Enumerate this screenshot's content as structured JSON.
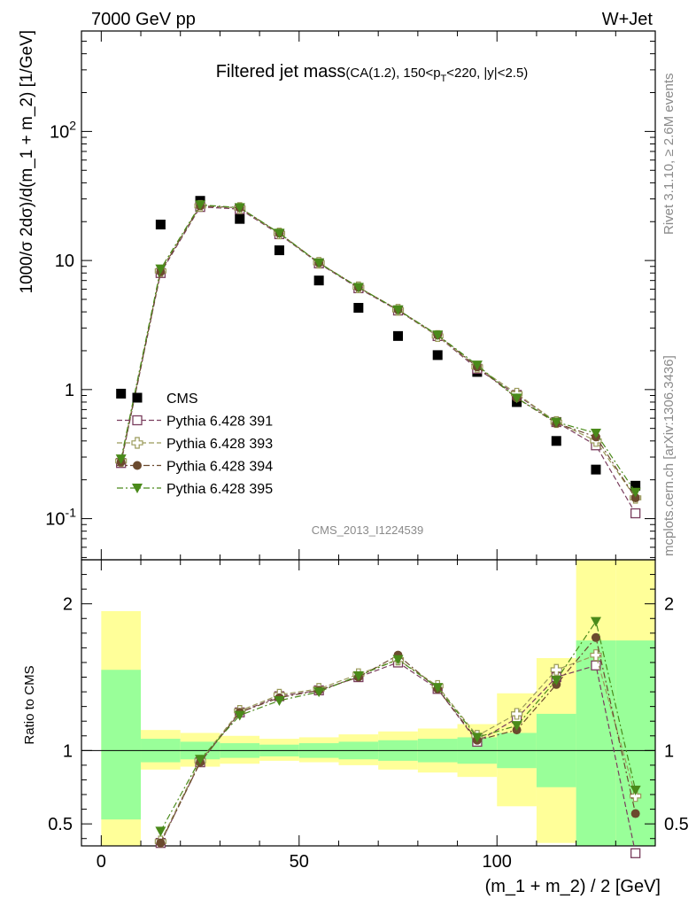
{
  "header": {
    "left": "7000 GeV pp",
    "right": "W+Jet",
    "title_main": "Filtered jet mass",
    "title_sub_pre": "(CA(1.2), 150<p",
    "title_sub_subscript": "T",
    "title_sub_post": "<220, |y|<2.5)",
    "analysis_id": "CMS_2013_I1224539",
    "side_rivet": "Rivet 3.1.10, ≥ 2.6M events",
    "side_mcplots": "mcplots.cern.ch [arXiv:1306.3436]"
  },
  "colors": {
    "data": "#000000",
    "p391": "#7a3e5e",
    "p393": "#9a9a5a",
    "p394": "#6b4a2e",
    "p395": "#4a8a1a",
    "band_inner": "#99ff99",
    "band_outer": "#ffff99"
  },
  "chart_data": [
    {
      "panel": "main",
      "type": "scatter",
      "xlabel": "(m_1 + m_2) / 2 [GeV]",
      "ylabel": "1000/σ 2dσ)/d(m_1 + m_2) [1/GeV]",
      "yscale": "log",
      "xlim": [
        -5,
        140
      ],
      "ylim": [
        0.048,
        600
      ],
      "yticks": [
        {
          "value": 1,
          "label": "1"
        },
        {
          "value": 10,
          "label": "10"
        },
        {
          "value": 100,
          "label": "10",
          "sup": "2"
        }
      ],
      "extra_tick_label": {
        "value": 0.1,
        "label": "10",
        "sup": "-1"
      },
      "x": [
        5,
        15,
        25,
        35,
        45,
        55,
        65,
        75,
        85,
        95,
        105,
        115,
        125,
        135
      ],
      "series": [
        {
          "name": "CMS",
          "key": "data",
          "marker": "square-filled",
          "values": [
            0.93,
            19,
            29,
            21,
            12,
            7,
            4.3,
            2.6,
            1.85,
            1.37,
            0.8,
            0.4,
            0.24,
            0.18
          ]
        },
        {
          "name": "Pythia 6.428 391",
          "key": "p391",
          "marker": "square-open",
          "line": "dash",
          "values": [
            0.27,
            8,
            26,
            25,
            16,
            9.5,
            6.1,
            4.1,
            2.6,
            1.45,
            0.91,
            0.56,
            0.37,
            0.11
          ]
        },
        {
          "name": "Pythia 6.428 393",
          "key": "p393",
          "marker": "plus-open",
          "line": "dash",
          "values": [
            0.28,
            8.3,
            26.5,
            25.5,
            16.2,
            9.6,
            6.2,
            4.15,
            2.6,
            1.5,
            0.93,
            0.56,
            0.4,
            0.145
          ]
        },
        {
          "name": "Pythia 6.428 394",
          "key": "p394",
          "marker": "circle-filled",
          "line": "dashdot",
          "values": [
            0.275,
            8.2,
            26.5,
            25.6,
            16.3,
            9.6,
            6.2,
            4.15,
            2.65,
            1.5,
            0.86,
            0.55,
            0.43,
            0.145
          ]
        },
        {
          "name": "Pythia 6.428 395",
          "key": "p395",
          "marker": "triangle-down-filled",
          "line": "dashdot",
          "values": [
            0.29,
            8.6,
            27,
            25.7,
            16.3,
            9.6,
            6.2,
            4.15,
            2.65,
            1.55,
            0.86,
            0.56,
            0.46,
            0.16
          ]
        }
      ],
      "legend_position": "lower-left"
    },
    {
      "panel": "ratio",
      "type": "scatter",
      "ylabel": "Ratio to CMS",
      "xlim": [
        -5,
        140
      ],
      "ylim": [
        0.35,
        2.3
      ],
      "xticks": [
        0,
        50,
        100
      ],
      "yticks": [
        0.5,
        1,
        2
      ],
      "reference_line": 1,
      "bands": [
        {
          "xlow": 0,
          "xhigh": 10,
          "inner": [
            0.53,
            1.55
          ],
          "outer": [
            0.35,
            1.95
          ]
        },
        {
          "xlow": 10,
          "xhigh": 20,
          "inner": [
            0.92,
            1.08
          ],
          "outer": [
            0.87,
            1.14
          ]
        },
        {
          "xlow": 20,
          "xhigh": 30,
          "inner": [
            0.94,
            1.06
          ],
          "outer": [
            0.89,
            1.12
          ]
        },
        {
          "xlow": 30,
          "xhigh": 40,
          "inner": [
            0.95,
            1.05
          ],
          "outer": [
            0.91,
            1.1
          ]
        },
        {
          "xlow": 40,
          "xhigh": 50,
          "inner": [
            0.96,
            1.04
          ],
          "outer": [
            0.93,
            1.08
          ]
        },
        {
          "xlow": 50,
          "xhigh": 60,
          "inner": [
            0.95,
            1.05
          ],
          "outer": [
            0.92,
            1.09
          ]
        },
        {
          "xlow": 60,
          "xhigh": 70,
          "inner": [
            0.94,
            1.06
          ],
          "outer": [
            0.9,
            1.11
          ]
        },
        {
          "xlow": 70,
          "xhigh": 80,
          "inner": [
            0.93,
            1.07
          ],
          "outer": [
            0.87,
            1.13
          ]
        },
        {
          "xlow": 80,
          "xhigh": 90,
          "inner": [
            0.92,
            1.08
          ],
          "outer": [
            0.85,
            1.15
          ]
        },
        {
          "xlow": 90,
          "xhigh": 100,
          "inner": [
            0.91,
            1.09
          ],
          "outer": [
            0.82,
            1.18
          ]
        },
        {
          "xlow": 100,
          "xhigh": 110,
          "inner": [
            0.88,
            1.12
          ],
          "outer": [
            0.62,
            1.39
          ]
        },
        {
          "xlow": 110,
          "xhigh": 120,
          "inner": [
            0.75,
            1.25
          ],
          "outer": [
            0.37,
            1.63
          ]
        },
        {
          "xlow": 120,
          "xhigh": 130,
          "inner": [
            0.35,
            1.75
          ],
          "outer": [
            0.35,
            2.3
          ]
        },
        {
          "xlow": 130,
          "xhigh": 140,
          "inner": [
            0.35,
            1.75
          ],
          "outer": [
            0.35,
            2.3
          ]
        }
      ],
      "x": [
        15,
        25,
        35,
        45,
        55,
        65,
        75,
        85,
        95,
        105,
        115,
        125,
        135
      ],
      "series": [
        {
          "name": "Pythia 6.428 391",
          "key": "p391",
          "marker": "square-open",
          "line": "dash",
          "values": [
            0.37,
            0.92,
            1.26,
            1.37,
            1.41,
            1.5,
            1.6,
            1.42,
            1.06,
            1.22,
            1.5,
            1.58,
            0.3
          ]
        },
        {
          "name": "Pythia 6.428 393",
          "key": "p393",
          "marker": "plus-open",
          "line": "dash",
          "values": [
            0.38,
            0.93,
            1.27,
            1.38,
            1.42,
            1.52,
            1.62,
            1.44,
            1.1,
            1.25,
            1.55,
            1.65,
            0.69
          ]
        },
        {
          "name": "Pythia 6.428 394",
          "key": "p394",
          "marker": "circle-filled",
          "line": "dashdot",
          "values": [
            0.37,
            0.92,
            1.26,
            1.36,
            1.41,
            1.5,
            1.65,
            1.42,
            1.07,
            1.14,
            1.45,
            1.77,
            0.57
          ]
        },
        {
          "name": "Pythia 6.428 395",
          "key": "p395",
          "marker": "triangle-down-filled",
          "line": "dashdot",
          "values": [
            0.45,
            0.94,
            1.24,
            1.34,
            1.4,
            1.51,
            1.62,
            1.43,
            1.09,
            1.17,
            1.48,
            1.88,
            0.73
          ]
        }
      ]
    }
  ]
}
